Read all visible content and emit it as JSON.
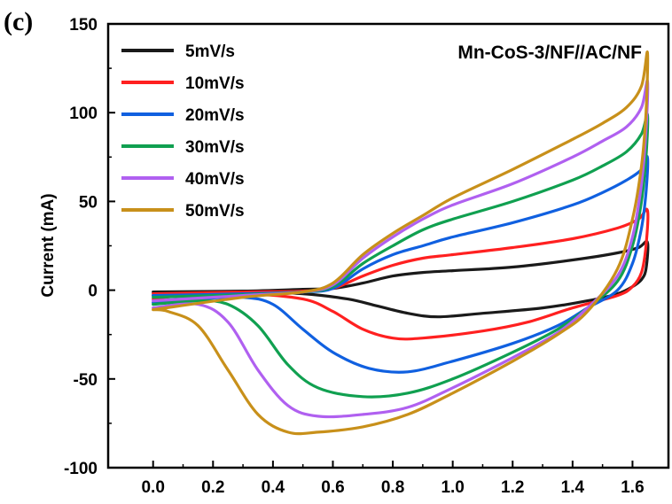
{
  "chart_data": {
    "type": "line",
    "panel_label": "(c)",
    "annotation": "Mn-CoS-3/NF//AC/NF",
    "ylabel": "Current (mA)",
    "xlabel": "",
    "xlim": [
      -0.15,
      1.72
    ],
    "ylim": [
      -100,
      150
    ],
    "x_ticks": [
      0.0,
      0.2,
      0.4,
      0.6,
      0.8,
      1.0,
      1.2,
      1.4,
      1.6
    ],
    "x_tick_labels": [
      "0.0",
      "0.2",
      "0.4",
      "0.6",
      "0.8",
      "1.0",
      "1.2",
      "1.4",
      "1.6"
    ],
    "y_ticks": [
      -100,
      -50,
      0,
      50,
      100,
      150
    ],
    "y_tick_labels": [
      "-100",
      "-50",
      "0",
      "50",
      "100",
      "150"
    ],
    "grid": false,
    "legend_position": "top-left",
    "series": [
      {
        "name": "5mV/s",
        "color": "#1a1a1a",
        "upper": [
          [
            0.0,
            -1
          ],
          [
            0.3,
            -0.5
          ],
          [
            0.5,
            0.5
          ],
          [
            0.6,
            1
          ],
          [
            0.7,
            4
          ],
          [
            0.8,
            8
          ],
          [
            0.9,
            10
          ],
          [
            1.0,
            11
          ],
          [
            1.2,
            13
          ],
          [
            1.4,
            17
          ],
          [
            1.55,
            21
          ],
          [
            1.62,
            24
          ],
          [
            1.65,
            27
          ]
        ],
        "lower": [
          [
            1.65,
            27
          ],
          [
            1.645,
            12
          ],
          [
            1.63,
            6
          ],
          [
            1.6,
            2
          ],
          [
            1.55,
            -2
          ],
          [
            1.45,
            -6
          ],
          [
            1.3,
            -10
          ],
          [
            1.1,
            -13
          ],
          [
            0.95,
            -15
          ],
          [
            0.85,
            -13
          ],
          [
            0.75,
            -9
          ],
          [
            0.65,
            -5
          ],
          [
            0.5,
            -2
          ],
          [
            0.3,
            -1
          ],
          [
            0.1,
            -2
          ],
          [
            0.0,
            -3
          ]
        ]
      },
      {
        "name": "10mV/s",
        "color": "#ff2020",
        "upper": [
          [
            0.0,
            -2
          ],
          [
            0.3,
            -1
          ],
          [
            0.5,
            -0.5
          ],
          [
            0.6,
            1
          ],
          [
            0.7,
            8
          ],
          [
            0.8,
            14
          ],
          [
            0.9,
            18
          ],
          [
            1.0,
            20
          ],
          [
            1.2,
            24
          ],
          [
            1.4,
            29
          ],
          [
            1.55,
            35
          ],
          [
            1.62,
            40
          ],
          [
            1.65,
            45
          ]
        ],
        "lower": [
          [
            1.65,
            45
          ],
          [
            1.645,
            25
          ],
          [
            1.63,
            10
          ],
          [
            1.6,
            2
          ],
          [
            1.55,
            -3
          ],
          [
            1.4,
            -10
          ],
          [
            1.25,
            -18
          ],
          [
            1.1,
            -23
          ],
          [
            0.9,
            -27
          ],
          [
            0.8,
            -27
          ],
          [
            0.7,
            -22
          ],
          [
            0.6,
            -12
          ],
          [
            0.5,
            -5
          ],
          [
            0.3,
            -2
          ],
          [
            0.1,
            -3
          ],
          [
            0.0,
            -5
          ]
        ]
      },
      {
        "name": "20mV/s",
        "color": "#1060e0",
        "upper": [
          [
            0.0,
            -3
          ],
          [
            0.3,
            -2
          ],
          [
            0.5,
            -1
          ],
          [
            0.6,
            1
          ],
          [
            0.7,
            12
          ],
          [
            0.8,
            20
          ],
          [
            0.9,
            25
          ],
          [
            1.0,
            30
          ],
          [
            1.2,
            38
          ],
          [
            1.4,
            48
          ],
          [
            1.5,
            55
          ],
          [
            1.58,
            62
          ],
          [
            1.63,
            68
          ],
          [
            1.65,
            75
          ]
        ],
        "lower": [
          [
            1.65,
            75
          ],
          [
            1.645,
            55
          ],
          [
            1.63,
            35
          ],
          [
            1.6,
            15
          ],
          [
            1.55,
            0
          ],
          [
            1.45,
            -10
          ],
          [
            1.35,
            -20
          ],
          [
            1.2,
            -30
          ],
          [
            1.0,
            -40
          ],
          [
            0.85,
            -46
          ],
          [
            0.72,
            -44
          ],
          [
            0.6,
            -35
          ],
          [
            0.5,
            -22
          ],
          [
            0.4,
            -8
          ],
          [
            0.3,
            -4
          ],
          [
            0.15,
            -5
          ],
          [
            0.0,
            -7
          ]
        ]
      },
      {
        "name": "30mV/s",
        "color": "#10a050",
        "upper": [
          [
            0.0,
            -4
          ],
          [
            0.3,
            -2.5
          ],
          [
            0.5,
            -1
          ],
          [
            0.6,
            2
          ],
          [
            0.7,
            15
          ],
          [
            0.8,
            25
          ],
          [
            0.9,
            34
          ],
          [
            1.0,
            40
          ],
          [
            1.2,
            50
          ],
          [
            1.4,
            62
          ],
          [
            1.5,
            70
          ],
          [
            1.58,
            78
          ],
          [
            1.63,
            88
          ],
          [
            1.65,
            99
          ]
        ],
        "lower": [
          [
            1.65,
            99
          ],
          [
            1.645,
            75
          ],
          [
            1.63,
            50
          ],
          [
            1.6,
            25
          ],
          [
            1.55,
            5
          ],
          [
            1.45,
            -10
          ],
          [
            1.35,
            -22
          ],
          [
            1.2,
            -35
          ],
          [
            1.0,
            -50
          ],
          [
            0.85,
            -58
          ],
          [
            0.7,
            -60
          ],
          [
            0.55,
            -55
          ],
          [
            0.45,
            -42
          ],
          [
            0.35,
            -20
          ],
          [
            0.25,
            -8
          ],
          [
            0.15,
            -6
          ],
          [
            0.0,
            -8
          ]
        ]
      },
      {
        "name": "40mV/s",
        "color": "#b060f0",
        "upper": [
          [
            0.0,
            -6
          ],
          [
            0.3,
            -3
          ],
          [
            0.5,
            -1
          ],
          [
            0.6,
            3
          ],
          [
            0.7,
            18
          ],
          [
            0.8,
            30
          ],
          [
            0.9,
            40
          ],
          [
            1.0,
            48
          ],
          [
            1.2,
            60
          ],
          [
            1.4,
            75
          ],
          [
            1.5,
            84
          ],
          [
            1.58,
            92
          ],
          [
            1.63,
            103
          ],
          [
            1.65,
            118
          ]
        ],
        "lower": [
          [
            1.65,
            118
          ],
          [
            1.645,
            90
          ],
          [
            1.63,
            60
          ],
          [
            1.6,
            30
          ],
          [
            1.55,
            8
          ],
          [
            1.45,
            -10
          ],
          [
            1.35,
            -24
          ],
          [
            1.2,
            -38
          ],
          [
            1.0,
            -55
          ],
          [
            0.85,
            -66
          ],
          [
            0.7,
            -70
          ],
          [
            0.55,
            -71
          ],
          [
            0.45,
            -65
          ],
          [
            0.35,
            -45
          ],
          [
            0.25,
            -18
          ],
          [
            0.15,
            -8
          ],
          [
            0.0,
            -10
          ]
        ]
      },
      {
        "name": "50mV/s",
        "color": "#c8901a",
        "upper": [
          [
            0.0,
            -11
          ],
          [
            0.3,
            -4
          ],
          [
            0.5,
            -1
          ],
          [
            0.6,
            4
          ],
          [
            0.7,
            20
          ],
          [
            0.8,
            32
          ],
          [
            0.9,
            42
          ],
          [
            1.0,
            52
          ],
          [
            1.2,
            68
          ],
          [
            1.4,
            85
          ],
          [
            1.5,
            94
          ],
          [
            1.58,
            103
          ],
          [
            1.63,
            115
          ],
          [
            1.65,
            134
          ]
        ],
        "lower": [
          [
            1.65,
            134
          ],
          [
            1.645,
            100
          ],
          [
            1.63,
            70
          ],
          [
            1.6,
            40
          ],
          [
            1.55,
            12
          ],
          [
            1.45,
            -12
          ],
          [
            1.35,
            -25
          ],
          [
            1.2,
            -40
          ],
          [
            1.0,
            -58
          ],
          [
            0.85,
            -70
          ],
          [
            0.7,
            -77
          ],
          [
            0.55,
            -80
          ],
          [
            0.45,
            -80
          ],
          [
            0.35,
            -70
          ],
          [
            0.25,
            -45
          ],
          [
            0.15,
            -20
          ],
          [
            0.05,
            -12
          ],
          [
            0.0,
            -11
          ]
        ]
      }
    ]
  }
}
